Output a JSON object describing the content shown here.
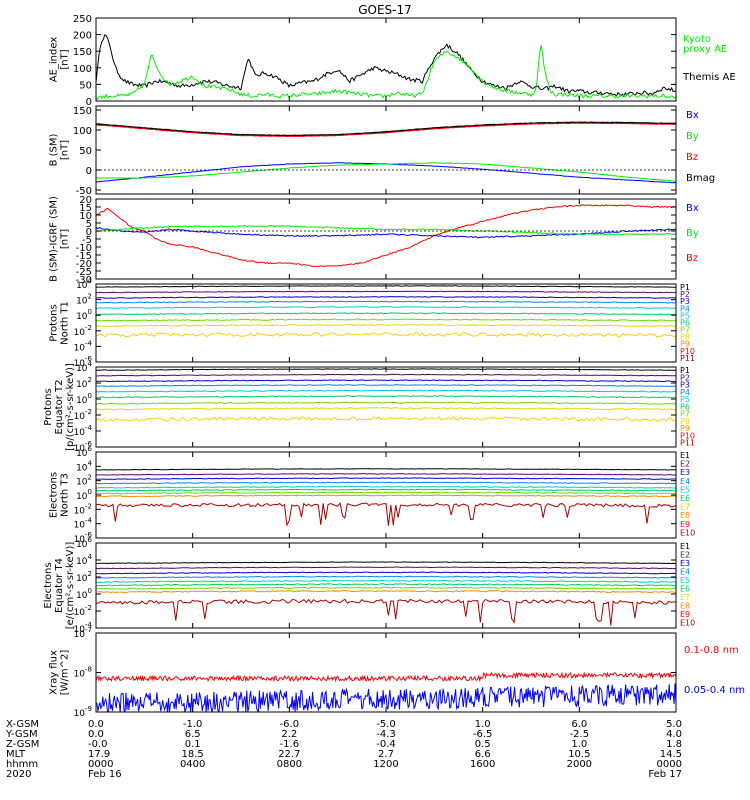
{
  "title": "GOES-17",
  "colors": {
    "axis": "#000000",
    "black": "#000000",
    "green": "#00ee00",
    "blue": "#0000ff",
    "red": "#ff0000",
    "darkred": "#cc0000",
    "brown": "#aa0000"
  },
  "chart_data": [
    {
      "id": "ae",
      "type": "line",
      "ylabel": [
        "AE_index",
        "[nT]"
      ],
      "ylim": [
        0,
        250
      ],
      "yticks": [
        "250",
        "200",
        "150",
        "100",
        "50",
        "0"
      ],
      "legend": [
        {
          "label": "Kyoto",
          "color": "#00ee00"
        },
        {
          "label": "proxy AE",
          "color": "#00ee00"
        },
        {
          "label": "Themis AE",
          "color": "#000000"
        }
      ],
      "series": [
        {
          "name": "Themis AE",
          "color": "#000000",
          "x": [
            0,
            0.2,
            0.4,
            0.6,
            0.8,
            1.0,
            1.2,
            1.5,
            2,
            2.5,
            3,
            3.5,
            4,
            4.5,
            5,
            5.5,
            6,
            6.3,
            6.6,
            7,
            7.5,
            8,
            8.5,
            9,
            9.5,
            10,
            10.5,
            11,
            11.5,
            12,
            12.5,
            13,
            13.5,
            14,
            14.5,
            15,
            15.5,
            16,
            16.5,
            17,
            17.5,
            18,
            18.5,
            19,
            19.5,
            20,
            20.5,
            21,
            21.5,
            22,
            22.5,
            23,
            23.5,
            24
          ],
          "y": [
            60,
            180,
            200,
            160,
            100,
            75,
            60,
            50,
            45,
            60,
            55,
            45,
            50,
            60,
            55,
            45,
            40,
            130,
            75,
            85,
            70,
            45,
            55,
            60,
            80,
            95,
            60,
            80,
            100,
            90,
            80,
            65,
            60,
            130,
            170,
            140,
            95,
            60,
            45,
            40,
            60,
            45,
            35,
            45,
            30,
            30,
            25,
            25,
            20,
            20,
            25,
            22,
            40,
            30
          ]
        },
        {
          "name": "Kyoto proxy AE",
          "color": "#00ee00",
          "x": [
            0,
            0.5,
            1,
            1.5,
            2,
            2.3,
            2.6,
            3,
            3.5,
            4,
            4.5,
            5,
            5.5,
            6,
            6.5,
            7,
            7.5,
            8,
            8.5,
            9,
            9.5,
            10,
            10.5,
            11,
            11.5,
            12,
            12.5,
            13,
            13.5,
            14,
            14.5,
            15,
            15.5,
            16,
            16.5,
            17,
            17.5,
            18,
            18.2,
            18.4,
            18.6,
            18.8,
            19,
            19.5,
            20,
            20.5,
            21,
            21.5,
            22,
            22.5,
            23,
            23.5,
            24
          ],
          "y": [
            10,
            15,
            15,
            20,
            50,
            140,
            90,
            50,
            60,
            75,
            45,
            40,
            35,
            20,
            15,
            20,
            15,
            15,
            20,
            20,
            25,
            30,
            25,
            20,
            15,
            15,
            25,
            15,
            20,
            120,
            150,
            130,
            100,
            60,
            40,
            30,
            25,
            20,
            30,
            175,
            80,
            30,
            20,
            20,
            15,
            15,
            15,
            15,
            15,
            15,
            15,
            15,
            10
          ]
        }
      ]
    },
    {
      "id": "bsm",
      "type": "line",
      "ylabel": [
        "B (SM)",
        "[nT]"
      ],
      "ylim": [
        -60,
        160
      ],
      "yticks": [
        "150",
        "100",
        "50",
        "0",
        "-50"
      ],
      "legend": [
        {
          "label": "Bx",
          "color": "#0000ff"
        },
        {
          "label": "By",
          "color": "#00ee00"
        },
        {
          "label": "Bz",
          "color": "#ff0000"
        },
        {
          "label": "Bmag",
          "color": "#000000"
        }
      ],
      "series": [
        {
          "name": "Bmag",
          "color": "#000000",
          "x": [
            0,
            2,
            4,
            6,
            8,
            10,
            12,
            14,
            16,
            18,
            20,
            22,
            24
          ],
          "y": [
            115,
            105,
            95,
            88,
            86,
            88,
            95,
            105,
            112,
            117,
            119,
            118,
            116
          ]
        },
        {
          "name": "Bz",
          "color": "#ff0000",
          "x": [
            0,
            2,
            4,
            6,
            8,
            10,
            12,
            14,
            16,
            18,
            20,
            22,
            24
          ],
          "y": [
            113,
            103,
            93,
            86,
            84,
            86,
            93,
            103,
            110,
            115,
            117,
            116,
            114
          ]
        },
        {
          "name": "Bx",
          "color": "#0000ff",
          "x": [
            0,
            2,
            4,
            6,
            8,
            10,
            12,
            14,
            16,
            18,
            20,
            22,
            24
          ],
          "y": [
            -30,
            -18,
            -5,
            8,
            15,
            18,
            15,
            10,
            2,
            -8,
            -18,
            -25,
            -32
          ]
        },
        {
          "name": "By",
          "color": "#00ee00",
          "x": [
            0,
            2,
            4,
            6,
            8,
            10,
            12,
            14,
            16,
            18,
            20,
            22,
            24
          ],
          "y": [
            -20,
            -20,
            -15,
            -5,
            5,
            12,
            15,
            18,
            15,
            5,
            -5,
            -18,
            -28
          ]
        }
      ]
    },
    {
      "id": "bigrf",
      "type": "line",
      "ylabel": [
        "B (SM)-IGRF (SM)",
        "[nT]"
      ],
      "ylim": [
        -30,
        20
      ],
      "yticks": [
        "20",
        "15",
        "10",
        "5",
        "0",
        "-5",
        "-10",
        "-15",
        "-20",
        "-25",
        "-30"
      ],
      "legend": [
        {
          "label": "Bx",
          "color": "#0000ff"
        },
        {
          "label": "By",
          "color": "#00ee00"
        },
        {
          "label": "Bz",
          "color": "#ff0000"
        }
      ],
      "series": [
        {
          "name": "Bz",
          "color": "#ff0000",
          "x": [
            0,
            0.5,
            1,
            1.5,
            2,
            2.5,
            3,
            4,
            5,
            6,
            7,
            8,
            9,
            10,
            11,
            12,
            13,
            14,
            15,
            16,
            17,
            18,
            19,
            20,
            21,
            22,
            23,
            24
          ],
          "y": [
            10,
            14,
            8,
            2,
            0,
            -5,
            -8,
            -10,
            -14,
            -18,
            -20,
            -20,
            -22,
            -22,
            -20,
            -15,
            -10,
            -3,
            2,
            6,
            10,
            13,
            15,
            16,
            16,
            16,
            15,
            15
          ]
        },
        {
          "name": "Bx",
          "color": "#0000ff",
          "x": [
            0,
            1,
            2,
            3,
            4,
            6,
            8,
            10,
            12,
            14,
            16,
            18,
            20,
            22,
            24
          ],
          "y": [
            2,
            0,
            -1,
            1,
            0,
            -2,
            -3,
            -3,
            -2,
            -3,
            -4,
            -3,
            -2,
            0,
            1
          ]
        },
        {
          "name": "By",
          "color": "#00ee00",
          "x": [
            0,
            1,
            2,
            4,
            6,
            8,
            10,
            12,
            14,
            16,
            18,
            20,
            22,
            24
          ],
          "y": [
            0,
            1,
            2,
            3,
            3,
            3,
            2,
            1,
            1,
            0,
            -1,
            -2,
            -2,
            -2
          ]
        }
      ]
    },
    {
      "id": "p1",
      "type": "line",
      "log": true,
      "ylabel": [
        "Protons",
        "North T1"
      ],
      "ylim_exp": [
        -6,
        4
      ],
      "yticks_exp": [
        4,
        2,
        0,
        -2,
        -4,
        -6
      ],
      "legend": [
        {
          "label": "P1",
          "color": "#000000"
        },
        {
          "label": "P2",
          "color": "#660066"
        },
        {
          "label": "P3",
          "color": "#0000cc"
        },
        {
          "label": "P4",
          "color": "#0088ff"
        },
        {
          "label": "P5",
          "color": "#00cccc"
        },
        {
          "label": "P6",
          "color": "#00cc66"
        },
        {
          "label": "P7",
          "color": "#66dd00"
        },
        {
          "label": "P8",
          "color": "#dddd00"
        },
        {
          "label": "P9",
          "color": "#ff8800"
        },
        {
          "label": "P10",
          "color": "#ff0000"
        },
        {
          "label": "P11",
          "color": "#aa0000"
        }
      ],
      "levels": [
        3.6,
        2.9,
        2.2,
        1.6,
        0.9,
        0.1,
        -0.7,
        -1.4,
        -2.6
      ],
      "level_colors": [
        "#000000",
        "#660066",
        "#0000cc",
        "#0088ff",
        "#00cccc",
        "#00cc66",
        "#66dd00",
        "#dddd00",
        "#ffcc00"
      ]
    },
    {
      "id": "p2",
      "type": "line",
      "log": true,
      "ylabel": [
        "Protons",
        "Equator T2",
        "[p/(cm²-s-sr-keV)]"
      ],
      "ylim_exp": [
        -6,
        4
      ],
      "yticks_exp": [
        4,
        2,
        0,
        -2,
        -4,
        -6
      ],
      "legend": [
        {
          "label": "P1",
          "color": "#000000"
        },
        {
          "label": "P2",
          "color": "#660066"
        },
        {
          "label": "P3",
          "color": "#0000cc"
        },
        {
          "label": "P4",
          "color": "#0088ff"
        },
        {
          "label": "P5",
          "color": "#00cccc"
        },
        {
          "label": "P6",
          "color": "#00cc66"
        },
        {
          "label": "P7",
          "color": "#66dd00"
        },
        {
          "label": "P8",
          "color": "#dddd00"
        },
        {
          "label": "P9",
          "color": "#ff8800"
        },
        {
          "label": "P10",
          "color": "#ff0000"
        },
        {
          "label": "P11",
          "color": "#aa0000"
        }
      ],
      "levels": [
        3.6,
        2.9,
        2.2,
        1.6,
        0.9,
        0.2,
        -0.6,
        -1.3,
        -2.6
      ],
      "level_colors": [
        "#000000",
        "#660066",
        "#0000cc",
        "#0088ff",
        "#00cccc",
        "#00cc66",
        "#66dd00",
        "#dddd00",
        "#ffcc00"
      ]
    },
    {
      "id": "e1",
      "type": "line",
      "log": true,
      "ylabel": [
        "Electrons",
        "North T3"
      ],
      "ylim_exp": [
        -6,
        6
      ],
      "yticks_exp": [
        6,
        4,
        2,
        0,
        -2,
        -4,
        -6
      ],
      "legend": [
        {
          "label": "E1",
          "color": "#000000"
        },
        {
          "label": "E2",
          "color": "#660066"
        },
        {
          "label": "E3",
          "color": "#0000cc"
        },
        {
          "label": "E4",
          "color": "#0088ff"
        },
        {
          "label": "E5",
          "color": "#00cccc"
        },
        {
          "label": "E6",
          "color": "#00cc66"
        },
        {
          "label": "E7",
          "color": "#dddd00"
        },
        {
          "label": "E8",
          "color": "#ff8800"
        },
        {
          "label": "E9",
          "color": "#ff0000"
        },
        {
          "label": "E10",
          "color": "#aa0000"
        }
      ],
      "levels": [
        3.5,
        2.8,
        2.2,
        1.6,
        1.0,
        0.6,
        0.2,
        -0.2,
        -1.5
      ],
      "level_colors": [
        "#000000",
        "#660066",
        "#0000cc",
        "#0088ff",
        "#00cccc",
        "#00cc66",
        "#66dd00",
        "#ff8800",
        "#aa0000"
      ]
    },
    {
      "id": "e2",
      "type": "line",
      "log": true,
      "ylabel": [
        "Electrons",
        "Equator T4",
        "[e/(cm²-s-sr-keV)]"
      ],
      "ylim_exp": [
        -4,
        6
      ],
      "yticks_exp": [
        6,
        4,
        2,
        0,
        -2,
        -4
      ],
      "legend": [
        {
          "label": "E1",
          "color": "#000000"
        },
        {
          "label": "E2",
          "color": "#660066"
        },
        {
          "label": "E3",
          "color": "#0000cc"
        },
        {
          "label": "E4",
          "color": "#0088ff"
        },
        {
          "label": "E5",
          "color": "#00cccc"
        },
        {
          "label": "E6",
          "color": "#00cc66"
        },
        {
          "label": "E7",
          "color": "#dddd00"
        },
        {
          "label": "E8",
          "color": "#ff8800"
        },
        {
          "label": "E9",
          "color": "#ff0000"
        },
        {
          "label": "E10",
          "color": "#aa0000"
        }
      ],
      "levels": [
        3.6,
        3.0,
        2.4,
        1.9,
        1.4,
        1.0,
        0.6,
        0.2,
        -1.0
      ],
      "level_colors": [
        "#000000",
        "#660066",
        "#0000cc",
        "#0088ff",
        "#00cccc",
        "#00cc66",
        "#66dd00",
        "#ff8800",
        "#aa0000"
      ]
    },
    {
      "id": "xray",
      "type": "line",
      "log": true,
      "ylabel": [
        "Xray flux",
        "[W/m^2]"
      ],
      "ylim_exp": [
        -9,
        -7
      ],
      "yticks_exp": [
        -7,
        -8,
        -9
      ],
      "legend": [
        {
          "label": "0.1-0.8 nm",
          "color": "#ff0000"
        },
        {
          "label": "0.05-0.4 nm",
          "color": "#0000ff"
        }
      ],
      "series": [
        {
          "name": "0.1-0.8 nm",
          "color": "#ff0000",
          "base_exp": -8.15
        },
        {
          "name": "0.05-0.4 nm",
          "color": "#0000ff",
          "base_exp": -8.8
        }
      ]
    }
  ],
  "x_axis": {
    "xlim": [
      0,
      24
    ],
    "tick_hours": [
      0,
      4,
      8,
      12,
      16,
      20,
      24
    ],
    "rows": [
      {
        "label": "X-GSM",
        "values": [
          "0.0",
          "-1.0",
          "-6.0",
          "-5.0",
          "1.0",
          "6.0",
          "5.0"
        ]
      },
      {
        "label": "Y-GSM",
        "values": [
          "0.0",
          "6.5",
          "2.2",
          "-4.3",
          "-6.5",
          "-2.5",
          "4.0"
        ]
      },
      {
        "label": "Z-GSM",
        "values": [
          "-0.0",
          "0.1",
          "-1.6",
          "-0.4",
          "0.5",
          "1.0",
          "1.8"
        ]
      },
      {
        "label": "MLT",
        "values": [
          "17.9",
          "18.5",
          "22.7",
          "2.7",
          "6.6",
          "10.5",
          "14.5"
        ]
      },
      {
        "label": "hhmm",
        "values": [
          "0000",
          "0400",
          "0800",
          "1200",
          "1600",
          "2000",
          "0000"
        ]
      }
    ],
    "year": "2020",
    "start_date": "Feb 16",
    "end_date": "Feb 17"
  }
}
